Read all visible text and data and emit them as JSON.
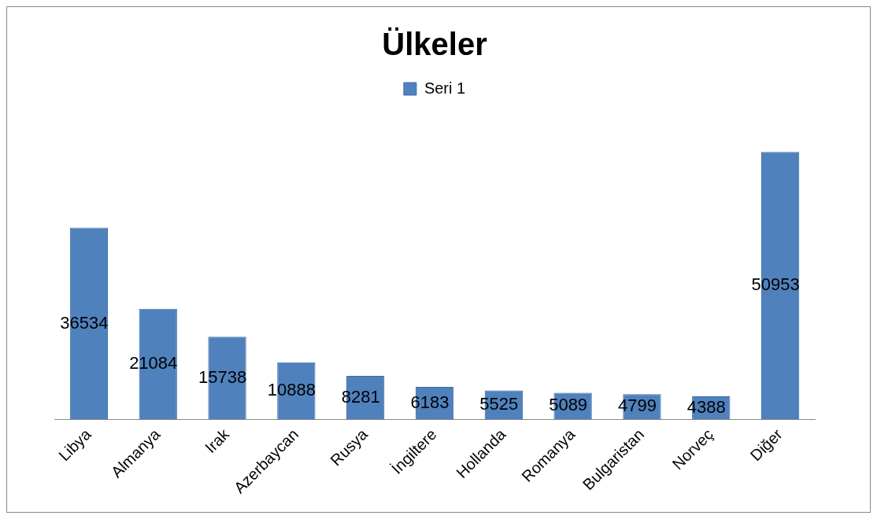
{
  "chart_data": {
    "type": "bar",
    "title": "Ülkeler",
    "categories": [
      "Libya",
      "Almanya",
      "Irak",
      "Azerbaycan",
      "Rusya",
      "İngiltere",
      "Hollanda",
      "Romanya",
      "Bulgaristan",
      "Norveç",
      "Diğer"
    ],
    "series": [
      {
        "name": "Seri 1",
        "color": "#4f81bd",
        "values": [
          36534,
          21084,
          15738,
          10888,
          8281,
          6183,
          5525,
          5089,
          4799,
          4388,
          50953
        ]
      }
    ],
    "data_labels": true,
    "legend": "top",
    "grid": false,
    "tick_labels": "x"
  }
}
